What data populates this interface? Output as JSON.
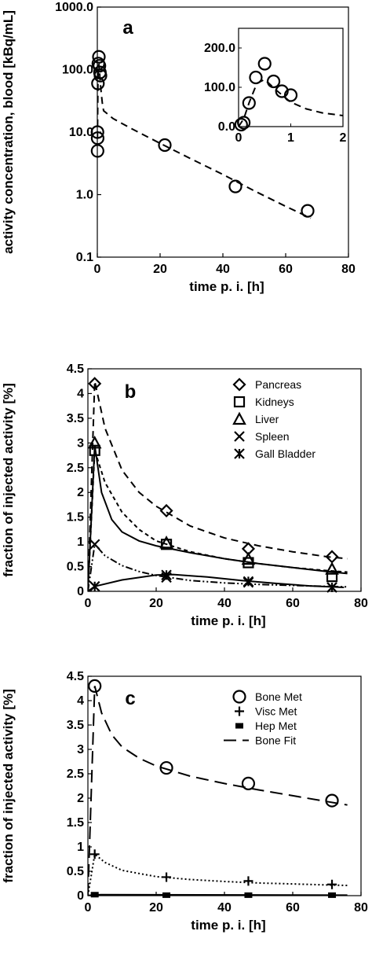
{
  "chart_data": [
    {
      "panel": "a",
      "type": "scatter",
      "scale_y": "log",
      "xlabel": "time p. i. [h]",
      "ylabel": "activity concentration, blood [kBq/mL]",
      "xlim": [
        0,
        80
      ],
      "ylim": [
        0.1,
        1000
      ],
      "xticks": [
        "0",
        "20",
        "40",
        "60",
        "80"
      ],
      "yticks": [
        "0.1",
        "1.0",
        "10.0",
        "100.0",
        "1000.0"
      ],
      "series": [
        {
          "marker": "circle",
          "x": [
            0.1,
            0.2,
            0.33,
            0.5,
            0.67,
            0.83,
            1.0,
            0.05,
            0.08,
            21.5,
            44.0,
            67.0
          ],
          "y": [
            8.0,
            60.0,
            125.0,
            160.0,
            115.0,
            90.0,
            80.0,
            10.0,
            5.0,
            6.2,
            1.35,
            0.55
          ]
        }
      ],
      "fit": {
        "style": "dashed",
        "x": [
          0.05,
          0.2,
          0.33,
          0.5,
          0.8,
          1.0,
          1.3,
          1.6,
          2,
          5,
          10,
          20,
          30,
          40,
          50,
          60,
          68
        ],
        "y": [
          8,
          62,
          118,
          120,
          80,
          58,
          40,
          29,
          22,
          16.5,
          12,
          6.6,
          3.7,
          2.1,
          1.15,
          0.65,
          0.42
        ]
      },
      "inset": {
        "xlim": [
          0,
          2
        ],
        "ylim": [
          0,
          250
        ],
        "xticks": [
          "0",
          "1",
          "2"
        ],
        "yticks": [
          "0.0",
          "100.0",
          "200.0"
        ],
        "x": [
          0.05,
          0.1,
          0.2,
          0.33,
          0.5,
          0.67,
          0.83,
          1.0
        ],
        "y": [
          5,
          10,
          60,
          125,
          160,
          115,
          90,
          80
        ],
        "fit": {
          "x": [
            0,
            0.1,
            0.2,
            0.35,
            0.5,
            0.7,
            1.0,
            1.3,
            1.6,
            2.0
          ],
          "y": [
            0,
            20,
            60,
            110,
            120,
            95,
            62,
            45,
            35,
            28
          ]
        }
      }
    },
    {
      "panel": "b",
      "type": "scatter",
      "xlabel": "time p. i. [h]",
      "ylabel": "fraction of injected activity [%]",
      "xlim": [
        0,
        80
      ],
      "ylim": [
        0,
        4.5
      ],
      "xticks": [
        "0",
        "20",
        "40",
        "60",
        "80"
      ],
      "yticks": [
        "0",
        "0.5",
        "1",
        "1.5",
        "2",
        "2.5",
        "3",
        "3.5",
        "4",
        "4.5"
      ],
      "series": [
        {
          "name": "Pancreas",
          "marker": "diamond",
          "x": [
            2,
            23,
            47,
            71.5
          ],
          "y": [
            4.2,
            1.63,
            0.86,
            0.7
          ],
          "fit": {
            "style": "dashed",
            "x": [
              0,
              2,
              5,
              10,
              15,
              20,
              30,
              40,
              50,
              60,
              70,
              76
            ],
            "y": [
              0,
              4.25,
              3.3,
              2.45,
              2.0,
              1.72,
              1.32,
              1.08,
              0.92,
              0.8,
              0.7,
              0.66
            ]
          }
        },
        {
          "name": "Kidneys",
          "marker": "square",
          "x": [
            2,
            23,
            47,
            71.5
          ],
          "y": [
            2.85,
            0.95,
            0.58,
            0.3
          ],
          "fit": {
            "style": "short-dashed",
            "x": [
              0,
              2,
              5,
              10,
              15,
              20,
              30,
              40,
              50,
              60,
              70,
              76
            ],
            "y": [
              0,
              2.85,
              2.2,
              1.6,
              1.25,
              1.02,
              0.8,
              0.66,
              0.56,
              0.48,
              0.42,
              0.39
            ]
          }
        },
        {
          "name": "Liver",
          "marker": "triangle",
          "x": [
            2,
            23,
            47,
            71.5
          ],
          "y": [
            3.0,
            0.98,
            0.65,
            0.45
          ],
          "fit": {
            "style": "solid",
            "x": [
              0,
              2,
              4,
              7,
              10,
              15,
              20,
              30,
              40,
              50,
              60,
              70,
              76
            ],
            "y": [
              0,
              2.95,
              2.0,
              1.45,
              1.2,
              1.02,
              0.92,
              0.78,
              0.66,
              0.56,
              0.48,
              0.4,
              0.36
            ]
          }
        },
        {
          "name": "Spleen",
          "marker": "x",
          "x": [
            2,
            23,
            47,
            71.5
          ],
          "y": [
            0.95,
            0.28,
            0.18,
            0.08
          ],
          "fit": {
            "style": "dash-dot-dot",
            "x": [
              0,
              2,
              5,
              10,
              15,
              20,
              30,
              40,
              50,
              60,
              70,
              76
            ],
            "y": [
              0,
              0.95,
              0.72,
              0.52,
              0.4,
              0.32,
              0.22,
              0.17,
              0.14,
              0.12,
              0.1,
              0.09
            ]
          }
        },
        {
          "name": "Gall Bladder",
          "marker": "asterisk",
          "x": [
            2,
            23,
            47,
            71.5
          ],
          "y": [
            0.1,
            0.33,
            0.2,
            0.08
          ],
          "fit": {
            "style": "solid",
            "x": [
              0,
              2,
              10,
              20,
              25,
              35,
              45,
              55,
              65,
              75
            ],
            "y": [
              0,
              0.1,
              0.23,
              0.33,
              0.34,
              0.29,
              0.22,
              0.16,
              0.11,
              0.08
            ]
          }
        }
      ],
      "legend": "top-right"
    },
    {
      "panel": "c",
      "type": "scatter",
      "xlabel": "time p. i. [h]",
      "ylabel": "fraction of injected activity [%]",
      "xlim": [
        0,
        80
      ],
      "ylim": [
        0,
        4.5
      ],
      "xticks": [
        "0",
        "20",
        "40",
        "60",
        "80"
      ],
      "yticks": [
        "0",
        "0.5",
        "1",
        "1.5",
        "2",
        "2.5",
        "3",
        "3.5",
        "4",
        "4.5"
      ],
      "series": [
        {
          "name": "Bone Met",
          "marker": "circle",
          "x": [
            2,
            23,
            47,
            71.5
          ],
          "y": [
            4.3,
            2.62,
            2.3,
            1.95
          ]
        },
        {
          "name": "Visc Met",
          "marker": "plus",
          "x": [
            2,
            23,
            47,
            71.5
          ],
          "y": [
            0.85,
            0.38,
            0.3,
            0.23
          ],
          "fit": {
            "style": "dotted",
            "x": [
              0,
              2,
              5,
              10,
              20,
              30,
              40,
              50,
              60,
              70,
              76
            ],
            "y": [
              0,
              0.85,
              0.68,
              0.52,
              0.39,
              0.33,
              0.29,
              0.26,
              0.24,
              0.22,
              0.21
            ]
          }
        },
        {
          "name": "Hep Met",
          "marker": "filled-square",
          "x": [
            2,
            23,
            47,
            71.5
          ],
          "y": [
            0.02,
            0.01,
            0.01,
            0.01
          ],
          "fit": {
            "style": "solid",
            "x": [
              0,
              2,
              76
            ],
            "y": [
              0,
              0.02,
              0.01
            ]
          }
        },
        {
          "name": "Bone Fit",
          "marker": "none",
          "fit": {
            "style": "long-dashed",
            "x": [
              0,
              2,
              4,
              7,
              10,
              15,
              20,
              30,
              40,
              50,
              60,
              70,
              76
            ],
            "y": [
              0,
              4.3,
              3.75,
              3.3,
              3.05,
              2.82,
              2.66,
              2.45,
              2.3,
              2.17,
              2.05,
              1.93,
              1.86
            ]
          }
        }
      ],
      "legend": "top-right"
    }
  ],
  "panel_labels": {
    "a": "a",
    "b": "b",
    "c": "c"
  }
}
